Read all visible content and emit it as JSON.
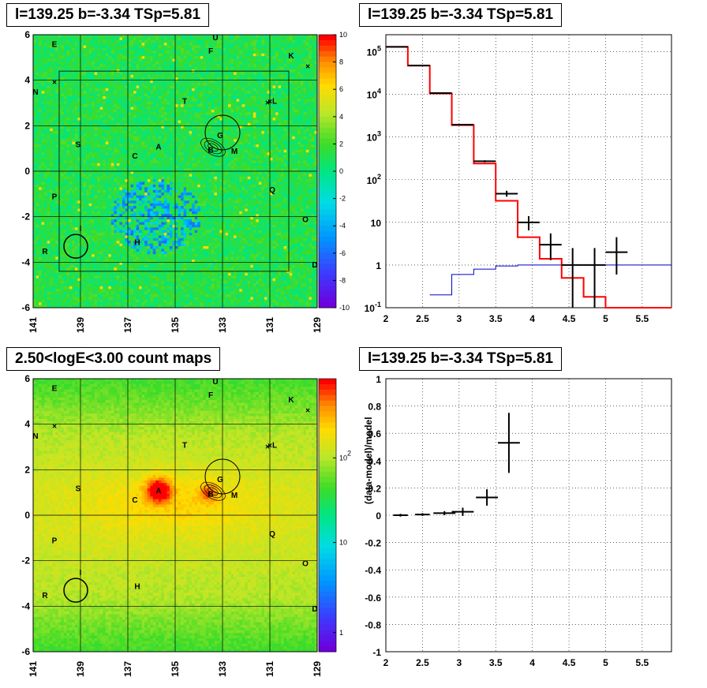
{
  "titles": {
    "tl": "l=139.25 b=-3.34 TSp=5.81",
    "tr": "l=139.25 b=-3.34 TSp=5.81",
    "bl": "2.50<logE<3.00 count maps",
    "br": "l=139.25 b=-3.34 TSp=5.81"
  },
  "chart_data": [
    {
      "type": "heatmap",
      "panel": "residual-significance-map",
      "xlim": [
        141,
        129
      ],
      "ylim": [
        -6,
        6
      ],
      "x_ticks": [
        "141",
        "139",
        "137",
        "135",
        "133",
        "131",
        "129"
      ],
      "y_ticks": [
        "-6",
        "-4",
        "-2",
        "0",
        "2",
        "4",
        "6"
      ],
      "colorbar_ticks": [
        "10",
        "8",
        "6",
        "4",
        "2",
        "0",
        "-2",
        "-4",
        "-6",
        "-8",
        "-10"
      ],
      "source_labels": [
        "E",
        "U",
        "F",
        "K",
        "N",
        "T",
        "L",
        "G",
        "B",
        "M",
        "S",
        "C",
        "A",
        "Q",
        "P",
        "O",
        "I",
        "R",
        "H",
        "D"
      ]
    },
    {
      "type": "line",
      "panel": "counts-spectrum",
      "y_scale": "log",
      "xlim": [
        2,
        5.9
      ],
      "ylim": [
        0.1,
        250000
      ],
      "x_ticks": [
        "2",
        "2.5",
        "3",
        "3.5",
        "4",
        "4.5",
        "5",
        "5.5"
      ],
      "y_ticks": [
        {
          "base": "10",
          "exp": "5"
        },
        {
          "base": "10",
          "exp": "4"
        },
        {
          "base": "10",
          "exp": "3"
        },
        {
          "base": "10",
          "exp": "2"
        },
        {
          "base": "10",
          "exp": ""
        },
        {
          "base": "1",
          "exp": ""
        },
        {
          "base": "10",
          "exp": "-1"
        }
      ],
      "series": [
        {
          "kind": "model-total",
          "color": "#ff0000",
          "edges": [
            2,
            2.3,
            2.6,
            2.9,
            3.2,
            3.5,
            3.8,
            4.1,
            4.4,
            4.7,
            5.0,
            5.9
          ],
          "values": [
            130000,
            47000,
            10500,
            1900,
            240,
            32,
            4.5,
            1.4,
            0.5,
            0.18,
            0.1
          ]
        },
        {
          "kind": "source-model",
          "color": "#0000cc",
          "edges": [
            2.6,
            2.9,
            3.2,
            3.5,
            3.8,
            5.9
          ],
          "values": [
            0.2,
            0.6,
            0.8,
            0.95,
            1.0
          ]
        },
        {
          "kind": "data",
          "color": "#000000",
          "points": [
            {
              "x": 2.15,
              "y": 130000,
              "xerr": 0.15,
              "lo": 129000,
              "hi": 131000
            },
            {
              "x": 2.45,
              "y": 47500,
              "xerr": 0.15,
              "lo": 47000,
              "hi": 48000
            },
            {
              "x": 2.75,
              "y": 10700,
              "xerr": 0.15,
              "lo": 10500,
              "hi": 10900
            },
            {
              "x": 3.05,
              "y": 1950,
              "xerr": 0.15,
              "lo": 1900,
              "hi": 2000
            },
            {
              "x": 3.35,
              "y": 270,
              "xerr": 0.15,
              "lo": 255,
              "hi": 285
            },
            {
              "x": 3.65,
              "y": 47,
              "xerr": 0.15,
              "lo": 40,
              "hi": 55
            },
            {
              "x": 3.95,
              "y": 10,
              "xerr": 0.15,
              "lo": 6.5,
              "hi": 14
            },
            {
              "x": 4.25,
              "y": 3,
              "xerr": 0.15,
              "lo": 1.3,
              "hi": 5.5
            },
            {
              "x": 4.55,
              "y": 1,
              "xerr": 0.15,
              "lo": 0.1,
              "hi": 2.5
            },
            {
              "x": 4.85,
              "y": 1,
              "xerr": 0.15,
              "lo": 0.1,
              "hi": 2.5
            },
            {
              "x": 5.15,
              "y": 2,
              "xerr": 0.15,
              "lo": 0.6,
              "hi": 4.5
            }
          ]
        }
      ]
    },
    {
      "type": "heatmap",
      "panel": "count-map",
      "xlim": [
        141,
        129
      ],
      "ylim": [
        -6,
        6
      ],
      "x_ticks": [
        "141",
        "139",
        "137",
        "135",
        "133",
        "131",
        "129"
      ],
      "y_ticks": [
        "-6",
        "-4",
        "-2",
        "0",
        "2",
        "4",
        "6"
      ],
      "colorbar_ticks": [
        {
          "base": "10",
          "exp": "2"
        },
        {
          "base": "10",
          "exp": ""
        },
        {
          "base": "1",
          "exp": ""
        }
      ]
    },
    {
      "type": "scatter",
      "panel": "residual",
      "ylabel": "(data-model)/model",
      "xlim": [
        2,
        5.9
      ],
      "ylim": [
        -1,
        1
      ],
      "x_ticks": [
        "2",
        "2.5",
        "3",
        "3.5",
        "4",
        "4.5",
        "5",
        "5.5"
      ],
      "y_ticks": [
        "1",
        "0.8",
        "0.6",
        "0.4",
        "0.2",
        "0",
        "-0.2",
        "-0.4",
        "-0.6",
        "-0.8",
        "-1"
      ],
      "points": [
        {
          "x": 2.2,
          "y": 0.0,
          "xerr": 0.1,
          "yerr": 0.01
        },
        {
          "x": 2.5,
          "y": 0.005,
          "xerr": 0.1,
          "yerr": 0.01
        },
        {
          "x": 2.8,
          "y": 0.015,
          "xerr": 0.15,
          "yerr": 0.015
        },
        {
          "x": 3.05,
          "y": 0.025,
          "xerr": 0.15,
          "yerr": 0.03
        },
        {
          "x": 3.38,
          "y": 0.13,
          "xerr": 0.15,
          "yerr": 0.06
        },
        {
          "x": 3.68,
          "y": 0.53,
          "xerr": 0.15,
          "yerr": 0.22
        }
      ]
    }
  ]
}
